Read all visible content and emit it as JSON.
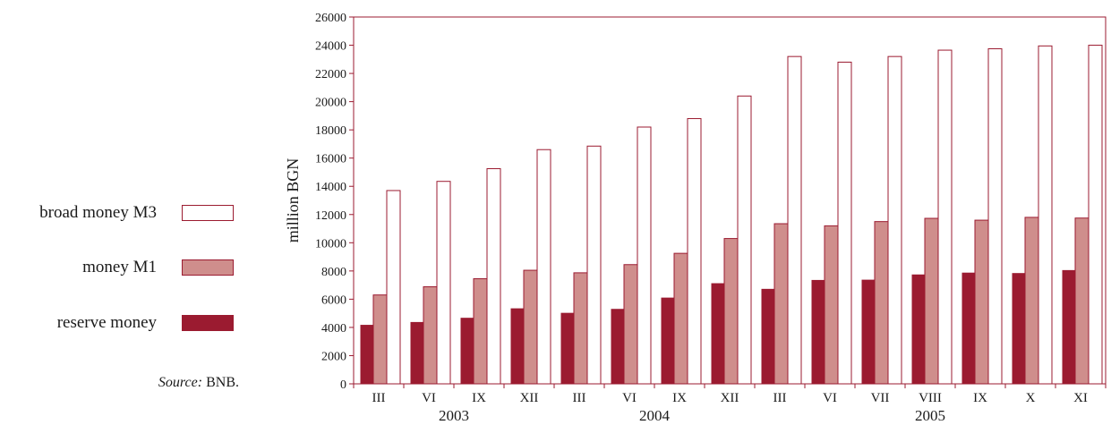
{
  "chart_data": {
    "type": "bar",
    "ylabel": "million BGN",
    "ylim": [
      0,
      26000
    ],
    "ytick_step": 2000,
    "categories": [
      "III",
      "VI",
      "IX",
      "XII",
      "III",
      "VI",
      "IX",
      "XII",
      "III",
      "VI",
      "VII",
      "VIII",
      "IX",
      "X",
      "XI"
    ],
    "year_groups": [
      {
        "label": "2003",
        "count": 4
      },
      {
        "label": "2004",
        "count": 4
      },
      {
        "label": "2005",
        "count": 7
      }
    ],
    "series": [
      {
        "name": "reserve money",
        "color": "#9b1b30",
        "values": [
          4150,
          4350,
          4650,
          5320,
          5000,
          5280,
          6080,
          7100,
          6700,
          7330,
          7350,
          7720,
          7850,
          7820,
          8030
        ]
      },
      {
        "name": "money M1",
        "color": "#cf8e8c",
        "values": [
          6300,
          6880,
          7450,
          8050,
          7870,
          8450,
          9250,
          10300,
          11350,
          11200,
          11500,
          11730,
          11600,
          11800,
          11750
        ]
      },
      {
        "name": "broad money M3",
        "color": "#ffffff",
        "values": [
          13700,
          14350,
          15250,
          16600,
          16850,
          18200,
          18800,
          20400,
          23200,
          22800,
          23200,
          23650,
          23750,
          23950,
          24000
        ]
      }
    ],
    "legend_position": "left",
    "grid": false
  },
  "source": {
    "label": "Source:",
    "value": "BNB."
  },
  "colors": {
    "frame": "#9b1b30",
    "reserve": "#9b1b30",
    "m1": "#cf8e8c",
    "m3": "#ffffff"
  }
}
